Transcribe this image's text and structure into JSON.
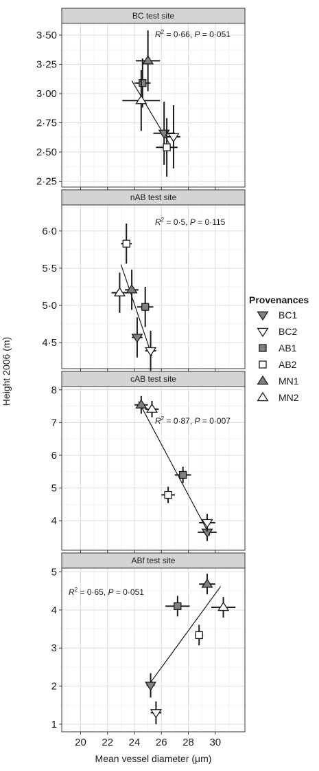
{
  "chart_data": {
    "type": "scatter",
    "xlabel": "Mean vessel diameter (μm)",
    "ylabel": "Height 2006 (m)",
    "xlim": [
      18.6,
      32.2
    ],
    "xticks": [
      "20",
      "22",
      "24",
      "26",
      "28",
      "30"
    ],
    "grid": true,
    "legend": {
      "title": "Provenances",
      "position": "right",
      "entries": [
        {
          "name": "BC1",
          "marker": "triangle-down",
          "fill": "#808080"
        },
        {
          "name": "BC2",
          "marker": "triangle-down",
          "fill": "#ffffff"
        },
        {
          "name": "AB1",
          "marker": "square",
          "fill": "#808080"
        },
        {
          "name": "AB2",
          "marker": "square",
          "fill": "#ffffff"
        },
        {
          "name": "MN1",
          "marker": "triangle-up",
          "fill": "#808080"
        },
        {
          "name": "MN2",
          "marker": "triangle-up",
          "fill": "#ffffff"
        }
      ]
    },
    "panels": [
      {
        "title": "BC test site",
        "stat": {
          "r2": "0·66",
          "p": "0·051"
        },
        "ylim": [
          2.2,
          3.6
        ],
        "yticks": [
          {
            "v": 2.25,
            "t": "2·25"
          },
          {
            "v": 2.5,
            "t": "2·50"
          },
          {
            "v": 2.75,
            "t": "2·75"
          },
          {
            "v": 3.0,
            "t": "3·00"
          },
          {
            "v": 3.25,
            "t": "3·25"
          },
          {
            "v": 3.5,
            "t": "3·50"
          }
        ],
        "fit": [
          [
            23.8,
            3.11
          ],
          [
            26.6,
            2.57
          ]
        ],
        "points": [
          {
            "p": "BC1",
            "x": 26.2,
            "y": 2.66,
            "xerr": 0.8,
            "yerr": 0.27
          },
          {
            "p": "BC2",
            "x": 26.9,
            "y": 2.63,
            "xerr": 0.5,
            "yerr": 0.27
          },
          {
            "p": "AB1",
            "x": 24.6,
            "y": 3.09,
            "xerr": 0.6,
            "yerr": 0.21
          },
          {
            "p": "AB2",
            "x": 26.4,
            "y": 2.54,
            "xerr": 0.8,
            "yerr": 0.25
          },
          {
            "p": "MN1",
            "x": 25.0,
            "y": 3.28,
            "xerr": 0.9,
            "yerr": 0.26
          },
          {
            "p": "MN2",
            "x": 24.5,
            "y": 2.94,
            "xerr": 1.4,
            "yerr": 0.26
          }
        ]
      },
      {
        "title": "nAB test site",
        "stat": {
          "r2": "0·5",
          "p": "0·115"
        },
        "ylim": [
          4.15,
          6.35
        ],
        "yticks": [
          {
            "v": 4.5,
            "t": "4·5"
          },
          {
            "v": 5.0,
            "t": "5·0"
          },
          {
            "v": 5.5,
            "t": "5·5"
          },
          {
            "v": 6.0,
            "t": "6·0"
          }
        ],
        "fit": [
          [
            23.0,
            5.55
          ],
          [
            25.3,
            4.32
          ]
        ],
        "points": [
          {
            "p": "BC1",
            "x": 24.2,
            "y": 4.57,
            "xerr": 0.4,
            "yerr": 0.27
          },
          {
            "p": "BC2",
            "x": 25.2,
            "y": 4.39,
            "xerr": 0.4,
            "yerr": 0.27
          },
          {
            "p": "AB1",
            "x": 24.8,
            "y": 4.98,
            "xerr": 0.6,
            "yerr": 0.27
          },
          {
            "p": "AB2",
            "x": 23.4,
            "y": 5.83,
            "xerr": 0.4,
            "yerr": 0.27
          },
          {
            "p": "MN1",
            "x": 23.8,
            "y": 5.21,
            "xerr": 0.5,
            "yerr": 0.27
          },
          {
            "p": "MN2",
            "x": 22.9,
            "y": 5.17,
            "xerr": 0.6,
            "yerr": 0.27
          }
        ]
      },
      {
        "title": "cAB test site",
        "stat": {
          "r2": "0·87",
          "p": "0·007"
        },
        "ylim": [
          3.1,
          8.1
        ],
        "yticks": [
          {
            "v": 4,
            "t": "4"
          },
          {
            "v": 5,
            "t": "5"
          },
          {
            "v": 6,
            "t": "6"
          },
          {
            "v": 7,
            "t": "7"
          },
          {
            "v": 8,
            "t": "8"
          }
        ],
        "fit": [
          [
            24.3,
            7.65
          ],
          [
            29.6,
            3.55
          ]
        ],
        "points": [
          {
            "p": "BC1",
            "x": 29.4,
            "y": 3.65,
            "xerr": 0.7,
            "yerr": 0.27
          },
          {
            "p": "BC2",
            "x": 29.4,
            "y": 3.94,
            "xerr": 0.6,
            "yerr": 0.27
          },
          {
            "p": "AB1",
            "x": 27.6,
            "y": 5.4,
            "xerr": 0.6,
            "yerr": 0.25
          },
          {
            "p": "AB2",
            "x": 26.5,
            "y": 4.79,
            "xerr": 0.5,
            "yerr": 0.25
          },
          {
            "p": "MN1",
            "x": 24.5,
            "y": 7.54,
            "xerr": 0.5,
            "yerr": 0.27
          },
          {
            "p": "MN2",
            "x": 25.3,
            "y": 7.41,
            "xerr": 0.5,
            "yerr": 0.25
          }
        ]
      },
      {
        "title": "ABf test site",
        "stat": {
          "r2": "0·65",
          "p": "0·051"
        },
        "ylim": [
          0.8,
          5.1
        ],
        "yticks": [
          {
            "v": 1,
            "t": "1"
          },
          {
            "v": 2,
            "t": "2"
          },
          {
            "v": 3,
            "t": "3"
          },
          {
            "v": 4,
            "t": "4"
          },
          {
            "v": 5,
            "t": "5"
          }
        ],
        "fit": [
          [
            25.1,
            2.05
          ],
          [
            30.4,
            4.62
          ]
        ],
        "points": [
          {
            "p": "BC1",
            "x": 25.2,
            "y": 2.02,
            "xerr": 0.3,
            "yerr": 0.32
          },
          {
            "p": "BC2",
            "x": 25.6,
            "y": 1.3,
            "xerr": 0.4,
            "yerr": 0.3
          },
          {
            "p": "AB1",
            "x": 27.2,
            "y": 4.1,
            "xerr": 0.9,
            "yerr": 0.27
          },
          {
            "p": "AB2",
            "x": 28.8,
            "y": 3.34,
            "xerr": 0.3,
            "yerr": 0.27
          },
          {
            "p": "MN1",
            "x": 29.4,
            "y": 4.68,
            "xerr": 0.6,
            "yerr": 0.27
          },
          {
            "p": "MN2",
            "x": 30.6,
            "y": 4.07,
            "xerr": 0.9,
            "yerr": 0.27
          }
        ]
      }
    ]
  }
}
